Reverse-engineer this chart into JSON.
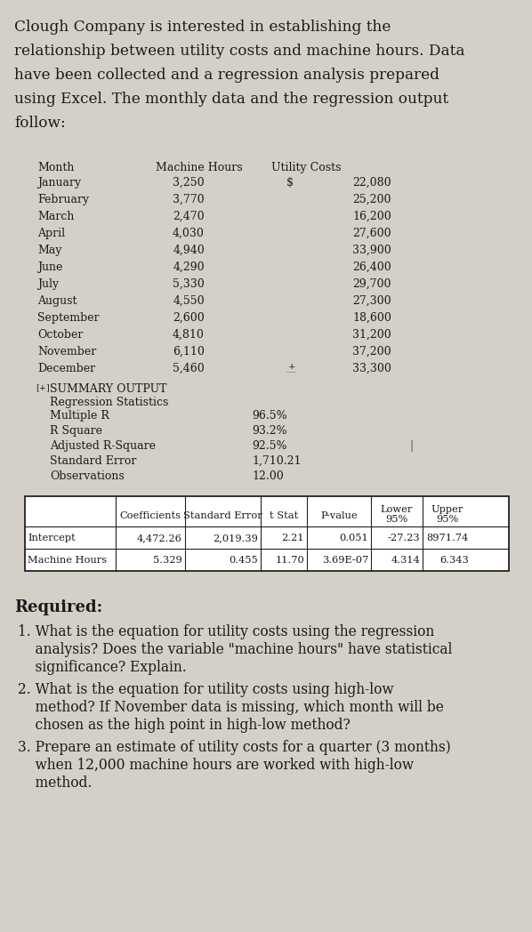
{
  "intro_text": "Clough Company is interested in establishing the\nrelationship between utility costs and machine hours. Data\nhave been collected and a regression analysis prepared\nusing Excel. The monthly data and the regression output\nfollow:",
  "months": [
    "January",
    "February",
    "March",
    "April",
    "May",
    "June",
    "July",
    "August",
    "September",
    "October",
    "November",
    "December"
  ],
  "machine_hours": [
    "3,250",
    "3,770",
    "2,470",
    "4,030",
    "4,940",
    "4,290",
    "5,330",
    "4,550",
    "2,600",
    "4,810",
    "6,110",
    "5,460"
  ],
  "utility_costs": [
    "22,080",
    "25,200",
    "16,200",
    "27,600",
    "33,900",
    "26,400",
    "29,700",
    "27,300",
    "18,600",
    "31,200",
    "37,200",
    "33,300"
  ],
  "reg_stats": [
    {
      "label": "Multiple R",
      "value": "96.5%"
    },
    {
      "label": "R Square",
      "value": "93.2%"
    },
    {
      "label": "Adjusted R-Square",
      "value": "92.5%"
    },
    {
      "label": "Standard Error",
      "value": "1,710.21"
    },
    {
      "label": "Observations",
      "value": "12.00"
    }
  ],
  "reg_table_headers": [
    "",
    "Coefficients",
    "Standard Error",
    "t Stat",
    "P-value",
    "Lower\n95%",
    "Upper\n95%"
  ],
  "reg_rows": [
    [
      "Intercept",
      "4,472.26",
      "2,019.39",
      "2.21",
      "0.051",
      "-27.23",
      "8971.74"
    ],
    [
      "Machine Hours",
      "5.329",
      "0.455",
      "11.70",
      "3.69E-07",
      "4.314",
      "6.343"
    ]
  ],
  "required_items": [
    [
      "1. What is the equation for utility costs using the regression",
      "    analysis? Does the variable \"machine hours\" have statistical",
      "    significance? Explain."
    ],
    [
      "2. What is the equation for utility costs using high-low",
      "    method? If November data is missing, which month will be",
      "    chosen as the high point in high-low method?"
    ],
    [
      "3. Prepare an estimate of utility costs for a quarter (3 months)",
      "    when 12,000 machine hours are worked with high-low",
      "    method."
    ]
  ],
  "bg_color": "#d4d0c8"
}
